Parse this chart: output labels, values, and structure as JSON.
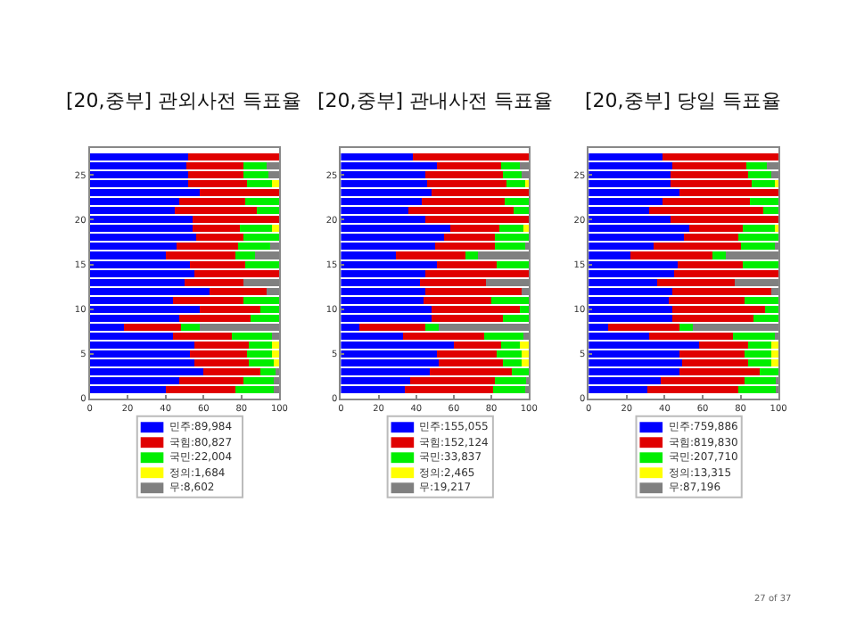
{
  "chart_data": [
    {
      "type": "bar",
      "orientation": "horizontal",
      "stacked": true,
      "title": "[20,중부] 관외사전 득표율",
      "legend": "bottom",
      "x": [
        1,
        2,
        3,
        4,
        5,
        6,
        7,
        8,
        9,
        10,
        11,
        12,
        13,
        14,
        15,
        16,
        17,
        18,
        19,
        20,
        21,
        22,
        23,
        24,
        25,
        26,
        27
      ],
      "xlim": [
        0,
        100
      ],
      "xticks": [
        0,
        20,
        40,
        60,
        80,
        100
      ],
      "ylim": [
        0,
        28
      ],
      "yticks": [
        0,
        5,
        10,
        15,
        20,
        25
      ],
      "series": [
        {
          "name": "민주:89,984",
          "color": "#0000ff",
          "values": [
            40,
            47,
            60,
            55,
            53,
            55,
            44,
            18,
            47,
            58,
            44,
            63,
            50,
            55,
            53,
            40,
            46,
            56,
            54,
            54,
            45,
            47,
            58,
            52,
            52,
            51,
            52
          ]
        },
        {
          "name": "국힘:80,827",
          "color": "#e00000",
          "values": [
            37,
            34,
            30,
            29,
            30,
            29,
            31,
            30,
            38,
            32,
            37,
            30,
            31,
            45,
            29,
            37,
            32,
            25,
            25,
            46,
            43,
            35,
            42,
            31,
            29,
            30,
            48
          ]
        },
        {
          "name": "국민:22,004",
          "color": "#00ee00",
          "values": [
            20,
            16,
            8,
            13,
            13,
            12,
            21,
            10,
            15,
            10,
            19,
            0,
            0,
            0,
            18,
            10,
            17,
            19,
            17,
            0,
            12,
            18,
            0,
            13,
            13,
            12,
            0
          ]
        },
        {
          "name": "정의:1,684",
          "color": "#ffff00",
          "values": [
            0,
            0,
            0,
            3,
            4,
            4,
            0,
            0,
            0,
            0,
            0,
            0,
            0,
            0,
            0,
            0,
            0,
            0,
            4,
            0,
            0,
            0,
            0,
            4,
            0,
            0,
            0
          ]
        },
        {
          "name": "무:8,602",
          "color": "#808080",
          "values": [
            3,
            3,
            2,
            0,
            0,
            0,
            4,
            42,
            0,
            0,
            0,
            7,
            19,
            0,
            0,
            13,
            5,
            0,
            0,
            0,
            0,
            0,
            0,
            0,
            6,
            7,
            0
          ]
        }
      ]
    },
    {
      "type": "bar",
      "orientation": "horizontal",
      "stacked": true,
      "title": "[20,중부] 관내사전 득표율",
      "legend": "bottom",
      "x": [
        1,
        2,
        3,
        4,
        5,
        6,
        7,
        8,
        9,
        10,
        11,
        12,
        13,
        14,
        15,
        16,
        17,
        18,
        19,
        20,
        21,
        22,
        23,
        24,
        25,
        26,
        27
      ],
      "xlim": [
        0,
        100
      ],
      "xticks": [
        0,
        20,
        40,
        60,
        80,
        100
      ],
      "ylim": [
        0,
        28
      ],
      "yticks": [
        0,
        5,
        10,
        15,
        20,
        25
      ],
      "series": [
        {
          "name": "민주:155,055",
          "color": "#0000ff",
          "values": [
            34,
            37,
            47,
            52,
            51,
            60,
            33,
            10,
            48,
            48,
            44,
            45,
            42,
            45,
            51,
            29,
            50,
            55,
            58,
            45,
            36,
            43,
            48,
            46,
            45,
            51,
            38
          ]
        },
        {
          "name": "국힘:152,124",
          "color": "#e00000",
          "values": [
            47,
            45,
            44,
            34,
            32,
            25,
            43,
            35,
            38,
            47,
            36,
            51,
            35,
            55,
            32,
            37,
            32,
            27,
            26,
            55,
            56,
            44,
            52,
            42,
            41,
            34,
            62
          ]
        },
        {
          "name": "국민:33,837",
          "color": "#00ee00",
          "values": [
            17,
            17,
            9,
            10,
            13,
            10,
            21,
            7,
            14,
            5,
            20,
            0,
            0,
            0,
            17,
            7,
            16,
            18,
            13,
            0,
            8,
            13,
            0,
            10,
            10,
            10,
            0
          ]
        },
        {
          "name": "정의:2,465",
          "color": "#ffff00",
          "values": [
            0,
            0,
            0,
            4,
            4,
            5,
            0,
            0,
            0,
            0,
            0,
            0,
            0,
            0,
            0,
            0,
            0,
            0,
            3,
            0,
            0,
            0,
            0,
            2,
            0,
            0,
            0
          ]
        },
        {
          "name": "무:19,217",
          "color": "#808080",
          "values": [
            2,
            1,
            0,
            0,
            0,
            0,
            3,
            48,
            0,
            0,
            0,
            4,
            23,
            0,
            0,
            27,
            2,
            0,
            0,
            0,
            0,
            0,
            0,
            0,
            4,
            5,
            0
          ]
        }
      ]
    },
    {
      "type": "bar",
      "orientation": "horizontal",
      "stacked": true,
      "title": "[20,중부] 당일 득표율",
      "legend": "bottom",
      "x": [
        1,
        2,
        3,
        4,
        5,
        6,
        7,
        8,
        9,
        10,
        11,
        12,
        13,
        14,
        15,
        16,
        17,
        18,
        19,
        20,
        21,
        22,
        23,
        24,
        25,
        26,
        27
      ],
      "xlim": [
        0,
        100
      ],
      "xticks": [
        0,
        20,
        40,
        60,
        80,
        100
      ],
      "ylim": [
        0,
        28
      ],
      "yticks": [
        0,
        5,
        10,
        15,
        20,
        25
      ],
      "annotations": [
        "27 of 37"
      ],
      "series": [
        {
          "name": "민주:759,886",
          "color": "#0000ff",
          "values": [
            31,
            38,
            48,
            49,
            48,
            58,
            32,
            10,
            44,
            44,
            42,
            44,
            36,
            45,
            47,
            22,
            34,
            50,
            53,
            43,
            32,
            39,
            48,
            43,
            43,
            44,
            39
          ]
        },
        {
          "name": "국힘:819,830",
          "color": "#e00000",
          "values": [
            48,
            44,
            42,
            35,
            34,
            26,
            44,
            38,
            43,
            49,
            40,
            52,
            41,
            55,
            34,
            43,
            46,
            29,
            28,
            57,
            60,
            46,
            52,
            43,
            41,
            39,
            61
          ]
        },
        {
          "name": "국민:207,710",
          "color": "#00ee00",
          "values": [
            20,
            17,
            10,
            12,
            14,
            12,
            22,
            7,
            13,
            7,
            18,
            0,
            0,
            0,
            19,
            7,
            18,
            21,
            17,
            0,
            8,
            15,
            0,
            12,
            12,
            11,
            0
          ]
        },
        {
          "name": "정의:13,315",
          "color": "#ffff00",
          "values": [
            0,
            0,
            0,
            4,
            4,
            4,
            0,
            0,
            0,
            0,
            0,
            0,
            0,
            0,
            0,
            0,
            0,
            0,
            2,
            0,
            0,
            0,
            0,
            2,
            0,
            0,
            0
          ]
        },
        {
          "name": "무:87,196",
          "color": "#808080",
          "values": [
            1,
            1,
            0,
            0,
            0,
            0,
            2,
            45,
            0,
            0,
            0,
            4,
            23,
            0,
            0,
            28,
            2,
            0,
            0,
            0,
            0,
            0,
            0,
            0,
            4,
            6,
            0
          ]
        }
      ]
    }
  ]
}
